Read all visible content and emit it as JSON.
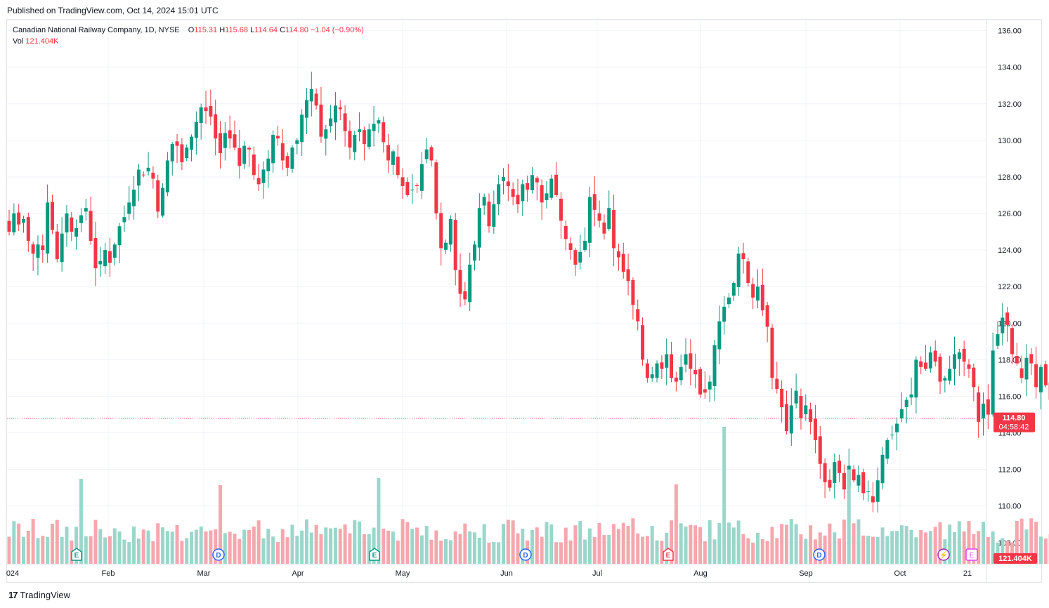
{
  "header": {
    "published": "Published on TradingView.com, Oct 14, 2024 15:01 UTC"
  },
  "legend": {
    "symbol": "Canadian National Railway Company, 1D, NYSE",
    "open_label": "O",
    "open": "115.31",
    "high_label": "H",
    "high": "115.68",
    "low_label": "L",
    "low": "114.64",
    "close_label": "C",
    "close": "114.80",
    "change": "−1.04 (−0.90%)",
    "vol_label": "Vol",
    "vol": "121.404K"
  },
  "footer": {
    "brand": "TradingView",
    "logo": "17"
  },
  "price_badge": {
    "price": "114.80",
    "countdown": "04:58:42"
  },
  "volume_badge": "121.404K",
  "colors": {
    "up": "#089981",
    "down": "#f23645",
    "up_vol": "#9bd6cb",
    "down_vol": "#f5a7ae",
    "grid": "#f0f3fa"
  },
  "chart_data": {
    "type": "candlestick",
    "title": "Canadian National Railway Company, 1D, NYSE",
    "y_axis": {
      "ticks": [
        "108.00",
        "110.00",
        "112.00",
        "114.00",
        "116.00",
        "118.00",
        "120.00",
        "122.00",
        "124.00",
        "126.00",
        "128.00",
        "130.00",
        "132.00",
        "134.00",
        "136.00"
      ],
      "range": [
        106.8,
        136.6
      ]
    },
    "x_axis": {
      "labels": [
        "024",
        "Feb",
        "Mar",
        "Apr",
        "May",
        "Jun",
        "Jul",
        "Aug",
        "Sep",
        "Oct",
        "21"
      ]
    },
    "grid": true,
    "last_price": 114.8,
    "close": [
      125.0,
      126.0,
      125.4,
      125.7,
      124.5,
      123.8,
      124.3,
      124.0,
      126.6,
      125.1,
      123.5,
      124.9,
      126.0,
      125.0,
      125.2,
      125.9,
      126.3,
      124.5,
      123.0,
      123.4,
      124.0,
      123.3,
      124.3,
      125.3,
      125.8,
      126.6,
      127.3,
      128.4,
      128.1,
      128.5,
      127.9,
      126.1,
      127.4,
      128.9,
      129.8,
      129.7,
      128.8,
      129.6,
      130.2,
      131.0,
      131.8,
      131.6,
      131.3,
      130.1,
      129.3,
      130.4,
      130.1,
      129.6,
      128.6,
      129.7,
      129.5,
      128.1,
      127.6,
      128.4,
      129.0,
      130.3,
      130.1,
      128.9,
      128.5,
      129.6,
      130.0,
      131.4,
      132.2,
      132.8,
      131.9,
      130.2,
      130.6,
      131.2,
      131.9,
      131.7,
      130.5,
      129.6,
      130.3,
      130.6,
      129.8,
      130.6,
      130.9,
      131.1,
      129.9,
      128.9,
      129.4,
      128.1,
      127.5,
      127.0,
      127.3,
      127.5,
      128.7,
      129.5,
      128.9,
      126.0,
      124.1,
      124.4,
      125.7,
      122.9,
      121.6,
      121.3,
      123.2,
      124.3,
      126.3,
      126.9,
      125.3,
      126.5,
      127.6,
      128.0,
      127.5,
      126.9,
      126.5,
      127.6,
      127.3,
      128.1,
      127.7,
      126.6,
      127.1,
      127.9,
      127.0,
      125.6,
      124.6,
      124.0,
      123.2,
      123.9,
      124.5,
      126.9,
      126.2,
      125.6,
      124.9,
      126.3,
      124.1,
      123.6,
      122.8,
      122.3,
      121.0,
      120.1,
      118.0,
      117.0,
      117.2,
      117.8,
      117.5,
      118.3,
      117.0,
      116.8,
      117.6,
      118.3,
      117.5,
      117.2,
      116.1,
      116.2,
      116.8,
      118.8,
      120.1,
      120.9,
      121.4,
      122.2,
      123.8,
      123.5,
      122.2,
      121.4,
      122.0,
      120.7,
      119.8,
      117.0,
      116.4,
      115.4,
      114.1,
      115.5,
      116.3,
      114.8,
      115.5,
      114.6,
      113.6,
      112.3,
      111.3,
      111.0,
      112.4,
      111.8,
      110.9,
      112.2,
      111.4,
      111.7,
      110.7,
      110.8,
      110.2,
      111.4,
      112.8,
      113.6,
      113.9,
      114.5,
      115.3,
      115.8,
      116.1,
      118.0,
      117.6,
      117.5,
      118.4,
      117.9,
      116.8,
      117.0,
      117.5,
      118.3,
      118.4,
      117.9,
      117.5,
      116.5,
      114.6,
      115.6,
      115.0,
      118.5,
      119.4,
      120.3,
      119.9,
      118.3,
      117.8,
      117.0,
      118.1,
      117.8,
      116.5,
      117.6,
      116.6,
      115.8,
      116.1,
      116.8,
      115.9,
      115.6,
      116.2,
      116.7,
      116.4,
      115.4,
      114.1,
      113.4,
      112.9,
      113.5,
      114.5,
      115.6,
      115.8,
      114.8
    ],
    "volume_note": "last volume 121.404K"
  }
}
